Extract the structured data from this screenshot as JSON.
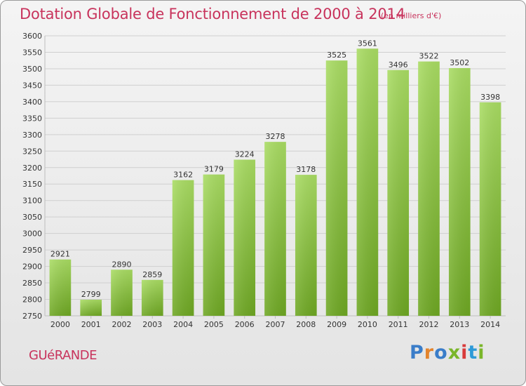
{
  "header": {
    "title": "Dotation Globale de Fonctionnement de 2000 à 2014",
    "subtitle": "(en milliers d'€)"
  },
  "footer": {
    "commune": "GUéRANDE",
    "logo_text": "Proxiti"
  },
  "colors": {
    "title": "#c8335c",
    "bar_light": "#a9dc63",
    "bar_dark": "#6ea723",
    "grid": "#cfcfcf"
  },
  "chart_data": {
    "type": "bar",
    "title": "Dotation Globale de Fonctionnement de 2000 à 2014",
    "subtitle": "(en milliers d'€)",
    "categories": [
      "2000",
      "2001",
      "2002",
      "2003",
      "2004",
      "2005",
      "2006",
      "2007",
      "2008",
      "2009",
      "2010",
      "2011",
      "2012",
      "2013",
      "2014"
    ],
    "values": [
      2921,
      2799,
      2890,
      2859,
      3162,
      3179,
      3224,
      3278,
      3178,
      3525,
      3561,
      3496,
      3522,
      3502,
      3398
    ],
    "ylim": [
      2750,
      3600
    ],
    "yticks": [
      2750,
      2800,
      2850,
      2900,
      2950,
      3000,
      3050,
      3100,
      3150,
      3200,
      3250,
      3300,
      3350,
      3400,
      3450,
      3500,
      3550,
      3600
    ],
    "grid": true,
    "legend": "none"
  }
}
